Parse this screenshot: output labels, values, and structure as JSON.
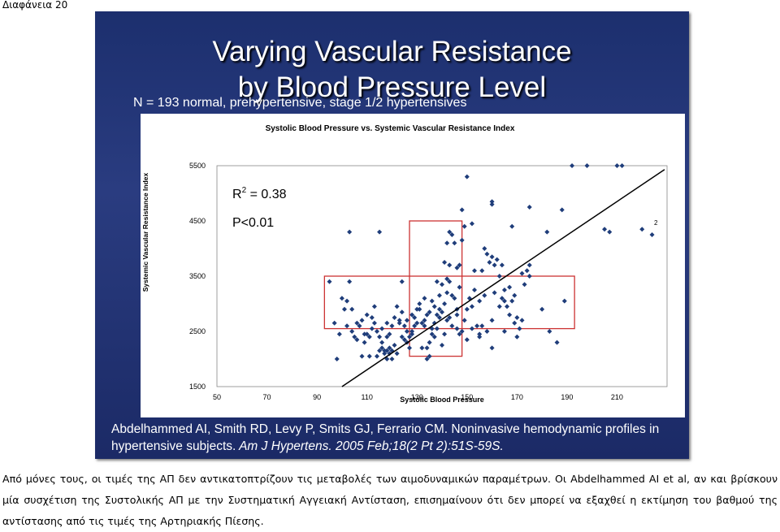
{
  "slide_label": "Διαφάνεια 20",
  "slide": {
    "title_line1": "Varying Vascular Resistance",
    "title_line2": "by Blood Pressure Level",
    "subtitle": "N = 193 normal, prehypertensive, stage 1/2 hypertensives",
    "citation_authors": "Abdelhammed AI, Smith RD, Levy P, Smits GJ, Ferrario CM. Noninvasive hemodynamic profiles in hypertensive subjects.",
    "citation_journal": " Am J Hypertens. 2005 Feb;18(2 Pt 2):51S-59S."
  },
  "notes": "Από μόνες τους, οι τιμές της ΑΠ δεν αντικατοπτρίζουν τις μεταβολές των αιμοδυναμικών παραμέτρων. Οι Abdelhammed AI et al, αν και βρίσκουν μία συσχέτιση της Συστολικής ΑΠ με την Συστηματική Αγγειακή Αντίσταση, επισημαίνουν ότι δεν μπορεί να εξαχθεί η εκτίμηση του βαθμού της αντίστασης από τις τιμές της Αρτηριακής Πίεσης.",
  "chart_data": {
    "type": "scatter",
    "title": "Systolic Blood Pressure vs. Systemic Vascular Resistance Index",
    "xlabel": "Systolic Blood Pressure",
    "ylabel": "Systemic Vascular Resistance Index",
    "xlim": [
      50,
      230
    ],
    "ylim": [
      1500,
      5500
    ],
    "xticks": [
      50,
      70,
      90,
      110,
      130,
      150,
      170,
      190,
      210
    ],
    "yticks": [
      1500,
      2500,
      3500,
      4500,
      5500
    ],
    "r2_label": "R",
    "r2_sup": "2",
    "r2_value": " = 0.38",
    "p_label": "P<0.01",
    "stray_label": "2",
    "marker_color": "#1f3d7a",
    "box_color": "#cc3333",
    "trendline": {
      "x": [
        100,
        229
      ],
      "y": [
        1500,
        5430
      ]
    },
    "boxes": [
      {
        "x": [
          93,
          193
        ],
        "y": [
          2550,
          3500
        ]
      },
      {
        "x": [
          127,
          148
        ],
        "y": [
          2050,
          4500
        ]
      }
    ],
    "points": [
      [
        98,
        2000
      ],
      [
        101,
        2900
      ],
      [
        102,
        2600
      ],
      [
        103,
        3400
      ],
      [
        104,
        2500
      ],
      [
        105,
        2400
      ],
      [
        106,
        2350
      ],
      [
        107,
        2600
      ],
      [
        108,
        2050
      ],
      [
        109,
        2300
      ],
      [
        110,
        2800
      ],
      [
        111,
        2400
      ],
      [
        112,
        2550
      ],
      [
        113,
        2650
      ],
      [
        114,
        2500
      ],
      [
        115,
        2150
      ],
      [
        116,
        2200
      ],
      [
        117,
        2100
      ],
      [
        118,
        2000
      ],
      [
        119,
        2200
      ],
      [
        114,
        2050
      ],
      [
        116,
        2300
      ],
      [
        117,
        2150
      ],
      [
        118,
        2150
      ],
      [
        119,
        2100
      ],
      [
        120,
        2000
      ],
      [
        121,
        2250
      ],
      [
        122,
        2100
      ],
      [
        123,
        2650
      ],
      [
        124,
        2400
      ],
      [
        125,
        2350
      ],
      [
        126,
        2300
      ],
      [
        127,
        2200
      ],
      [
        125,
        2600
      ],
      [
        126,
        2700
      ],
      [
        128,
        2800
      ],
      [
        129,
        2750
      ],
      [
        130,
        2900
      ],
      [
        131,
        3000
      ],
      [
        132,
        2650
      ],
      [
        133,
        3100
      ],
      [
        134,
        2200
      ],
      [
        135,
        2300
      ],
      [
        136,
        2450
      ],
      [
        137,
        2400
      ],
      [
        138,
        2550
      ],
      [
        139,
        3150
      ],
      [
        140,
        3350
      ],
      [
        141,
        3000
      ],
      [
        142,
        3450
      ],
      [
        142,
        3200
      ],
      [
        143,
        2750
      ],
      [
        144,
        2600
      ],
      [
        145,
        3100
      ],
      [
        146,
        2900
      ],
      [
        147,
        3300
      ],
      [
        148,
        2500
      ],
      [
        133,
        2600
      ],
      [
        134,
        2800
      ],
      [
        135,
        2050
      ],
      [
        136,
        3050
      ],
      [
        137,
        2950
      ],
      [
        138,
        3400
      ],
      [
        139,
        2750
      ],
      [
        140,
        2850
      ],
      [
        141,
        3750
      ],
      [
        142,
        4100
      ],
      [
        143,
        4300
      ],
      [
        144,
        4250
      ],
      [
        145,
        4100
      ],
      [
        146,
        3650
      ],
      [
        147,
        3700
      ],
      [
        148,
        4150
      ],
      [
        149,
        4400
      ],
      [
        150,
        5300
      ],
      [
        151,
        3100
      ],
      [
        152,
        2950
      ],
      [
        153,
        3250
      ],
      [
        154,
        2600
      ],
      [
        155,
        2450
      ],
      [
        156,
        3600
      ],
      [
        157,
        4000
      ],
      [
        158,
        3900
      ],
      [
        159,
        3750
      ],
      [
        160,
        3850
      ],
      [
        161,
        3700
      ],
      [
        162,
        3800
      ],
      [
        163,
        3500
      ],
      [
        164,
        3100
      ],
      [
        165,
        3250
      ],
      [
        166,
        2950
      ],
      [
        167,
        3300
      ],
      [
        168,
        3050
      ],
      [
        169,
        2650
      ],
      [
        170,
        2750
      ],
      [
        171,
        2550
      ],
      [
        172,
        3550
      ],
      [
        173,
        3350
      ],
      [
        174,
        3600
      ],
      [
        175,
        3700
      ],
      [
        169,
        3150
      ],
      [
        167,
        2800
      ],
      [
        165,
        2500
      ],
      [
        163,
        2950
      ],
      [
        161,
        3200
      ],
      [
        160,
        2700
      ],
      [
        158,
        2500
      ],
      [
        157,
        3150
      ],
      [
        155,
        3050
      ],
      [
        153,
        3600
      ],
      [
        152,
        2550
      ],
      [
        150,
        2900
      ],
      [
        149,
        2700
      ],
      [
        147,
        2450
      ],
      [
        146,
        2800
      ],
      [
        144,
        3150
      ],
      [
        143,
        3400
      ],
      [
        142,
        2700
      ],
      [
        141,
        2450
      ],
      [
        139,
        2900
      ],
      [
        138,
        2800
      ],
      [
        137,
        2650
      ],
      [
        136,
        2550
      ],
      [
        135,
        2850
      ],
      [
        133,
        2700
      ],
      [
        131,
        2900
      ],
      [
        130,
        2650
      ],
      [
        129,
        2600
      ],
      [
        128,
        2500
      ],
      [
        127,
        2400
      ],
      [
        126,
        2500
      ],
      [
        124,
        2850
      ],
      [
        123,
        2700
      ],
      [
        121,
        2750
      ],
      [
        120,
        2600
      ],
      [
        119,
        2450
      ],
      [
        118,
        2650
      ],
      [
        116,
        2550
      ],
      [
        115,
        2400
      ],
      [
        113,
        2950
      ],
      [
        112,
        2750
      ],
      [
        110,
        2450
      ],
      [
        108,
        2700
      ],
      [
        106,
        2650
      ],
      [
        104,
        2900
      ],
      [
        102,
        3050
      ],
      [
        100,
        3100
      ],
      [
        99,
        2450
      ],
      [
        97,
        2650
      ],
      [
        95,
        3400
      ],
      [
        103,
        4300
      ],
      [
        115,
        4300
      ],
      [
        148,
        4700
      ],
      [
        152,
        4450
      ],
      [
        160,
        4850
      ],
      [
        168,
        4400
      ],
      [
        175,
        4750
      ],
      [
        182,
        4300
      ],
      [
        188,
        4700
      ],
      [
        192,
        5650
      ],
      [
        198,
        5650
      ],
      [
        205,
        4350
      ],
      [
        207,
        4300
      ],
      [
        210,
        5550
      ],
      [
        212,
        5500
      ],
      [
        220,
        4350
      ],
      [
        224,
        4250
      ],
      [
        160,
        4800
      ],
      [
        164,
        3700
      ],
      [
        175,
        3500
      ],
      [
        132,
        2200
      ],
      [
        134,
        2000
      ],
      [
        140,
        2250
      ],
      [
        146,
        2550
      ],
      [
        150,
        2350
      ],
      [
        156,
        2600
      ],
      [
        160,
        2200
      ],
      [
        165,
        3050
      ],
      [
        172,
        2700
      ],
      [
        180,
        2900
      ],
      [
        183,
        2500
      ],
      [
        186,
        2300
      ],
      [
        189,
        3050
      ],
      [
        170,
        2400
      ],
      [
        155,
        2400
      ],
      [
        128,
        2450
      ],
      [
        122,
        2950
      ],
      [
        118,
        2400
      ],
      [
        111,
        2050
      ],
      [
        109,
        2450
      ],
      [
        120,
        2150
      ],
      [
        124,
        3400
      ],
      [
        143,
        3700
      ]
    ]
  }
}
